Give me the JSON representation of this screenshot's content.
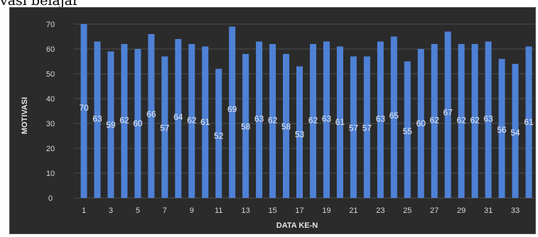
{
  "caption": "vasi belajar",
  "chart_data": {
    "type": "bar",
    "xlabel": "DATA KE-N",
    "ylabel": "MOTIVASI",
    "ylim": [
      0,
      70
    ],
    "yticks": [
      0,
      10,
      20,
      30,
      40,
      50,
      60,
      70
    ],
    "xtick_labels": [
      "1",
      "3",
      "5",
      "7",
      "9",
      "11",
      "13",
      "15",
      "17",
      "19",
      "21",
      "23",
      "25",
      "27",
      "29",
      "31",
      "33"
    ],
    "categories": [
      1,
      2,
      3,
      4,
      5,
      6,
      7,
      8,
      9,
      10,
      11,
      12,
      13,
      14,
      15,
      16,
      17,
      18,
      19,
      20,
      21,
      22,
      23,
      24,
      25,
      26,
      27,
      28,
      29,
      30,
      31,
      32,
      33,
      34
    ],
    "values": [
      70,
      63,
      59,
      62,
      60,
      66,
      57,
      64,
      62,
      61,
      52,
      69,
      58,
      63,
      62,
      58,
      53,
      62,
      63,
      61,
      57,
      57,
      63,
      65,
      55,
      60,
      62,
      67,
      62,
      62,
      63,
      56,
      54,
      61
    ],
    "data_labels": [
      "70",
      "63",
      "59",
      "62",
      "60",
      "66",
      "57",
      "64",
      "62",
      "61",
      "52",
      "69",
      "58",
      "63",
      "62",
      "58",
      "53",
      "62",
      "63",
      "61",
      "57",
      "57",
      "63",
      "65",
      "55",
      "60",
      "62",
      "67",
      "62",
      "62",
      "63",
      "56",
      "54",
      "61"
    ],
    "grid": true,
    "colors": {
      "bar": "#4e81d6",
      "background": "#2b2b2b",
      "text": "#d8d8d8"
    }
  }
}
